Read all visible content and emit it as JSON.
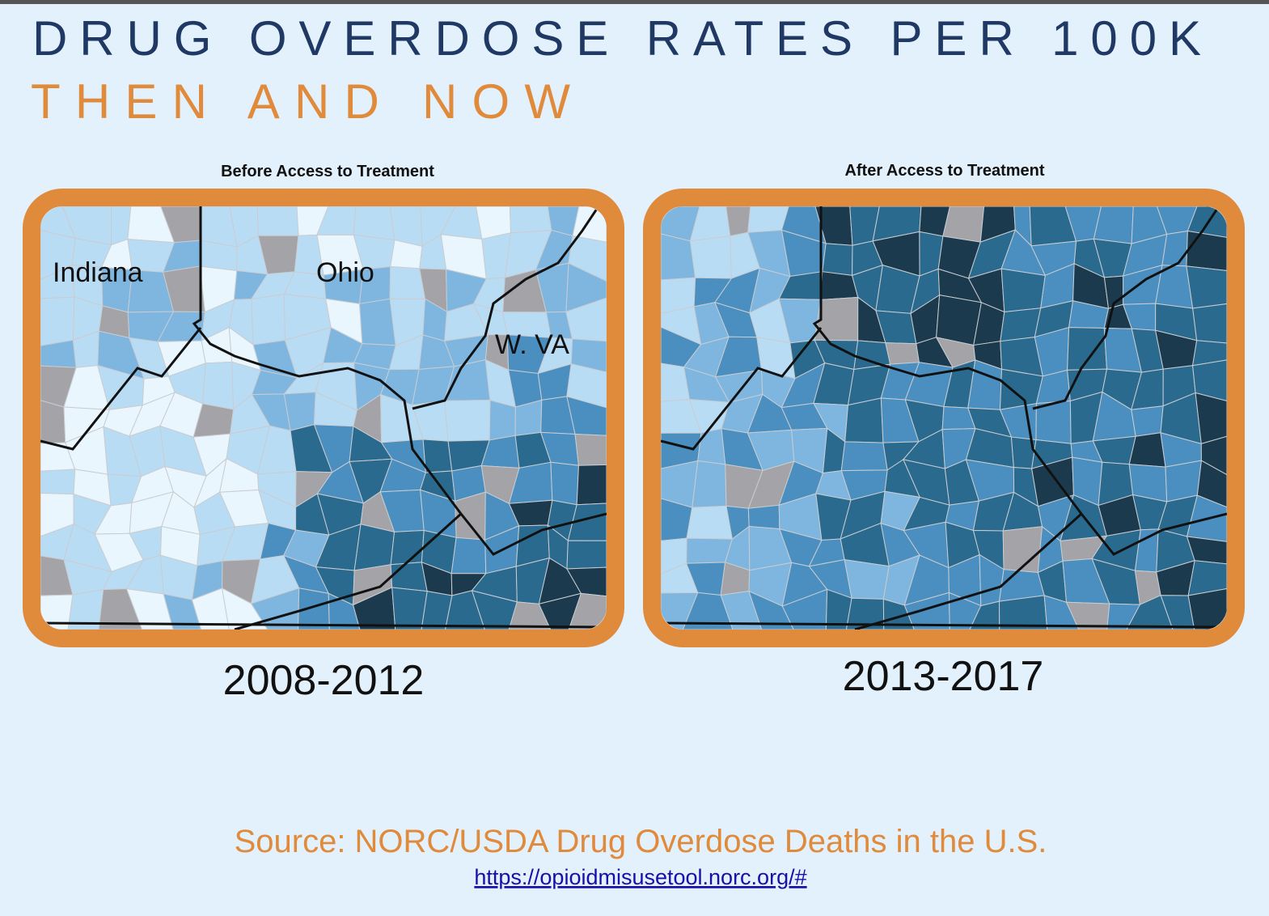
{
  "title": "DRUG OVERDOSE RATES PER 100K",
  "subtitle": "THEN AND NOW",
  "maps": [
    {
      "heading": "Before Access to Treatment",
      "period": "2008-2012",
      "labels": [
        "Indiana",
        "Ohio",
        "W. VA"
      ]
    },
    {
      "heading": "After Access to Treatment",
      "period": "2013-2017"
    }
  ],
  "source": {
    "text": "Source: NORC/USDA Drug Overdose Deaths in the U.S.",
    "url": "https://opioidmisusetool.norc.org/#"
  }
}
